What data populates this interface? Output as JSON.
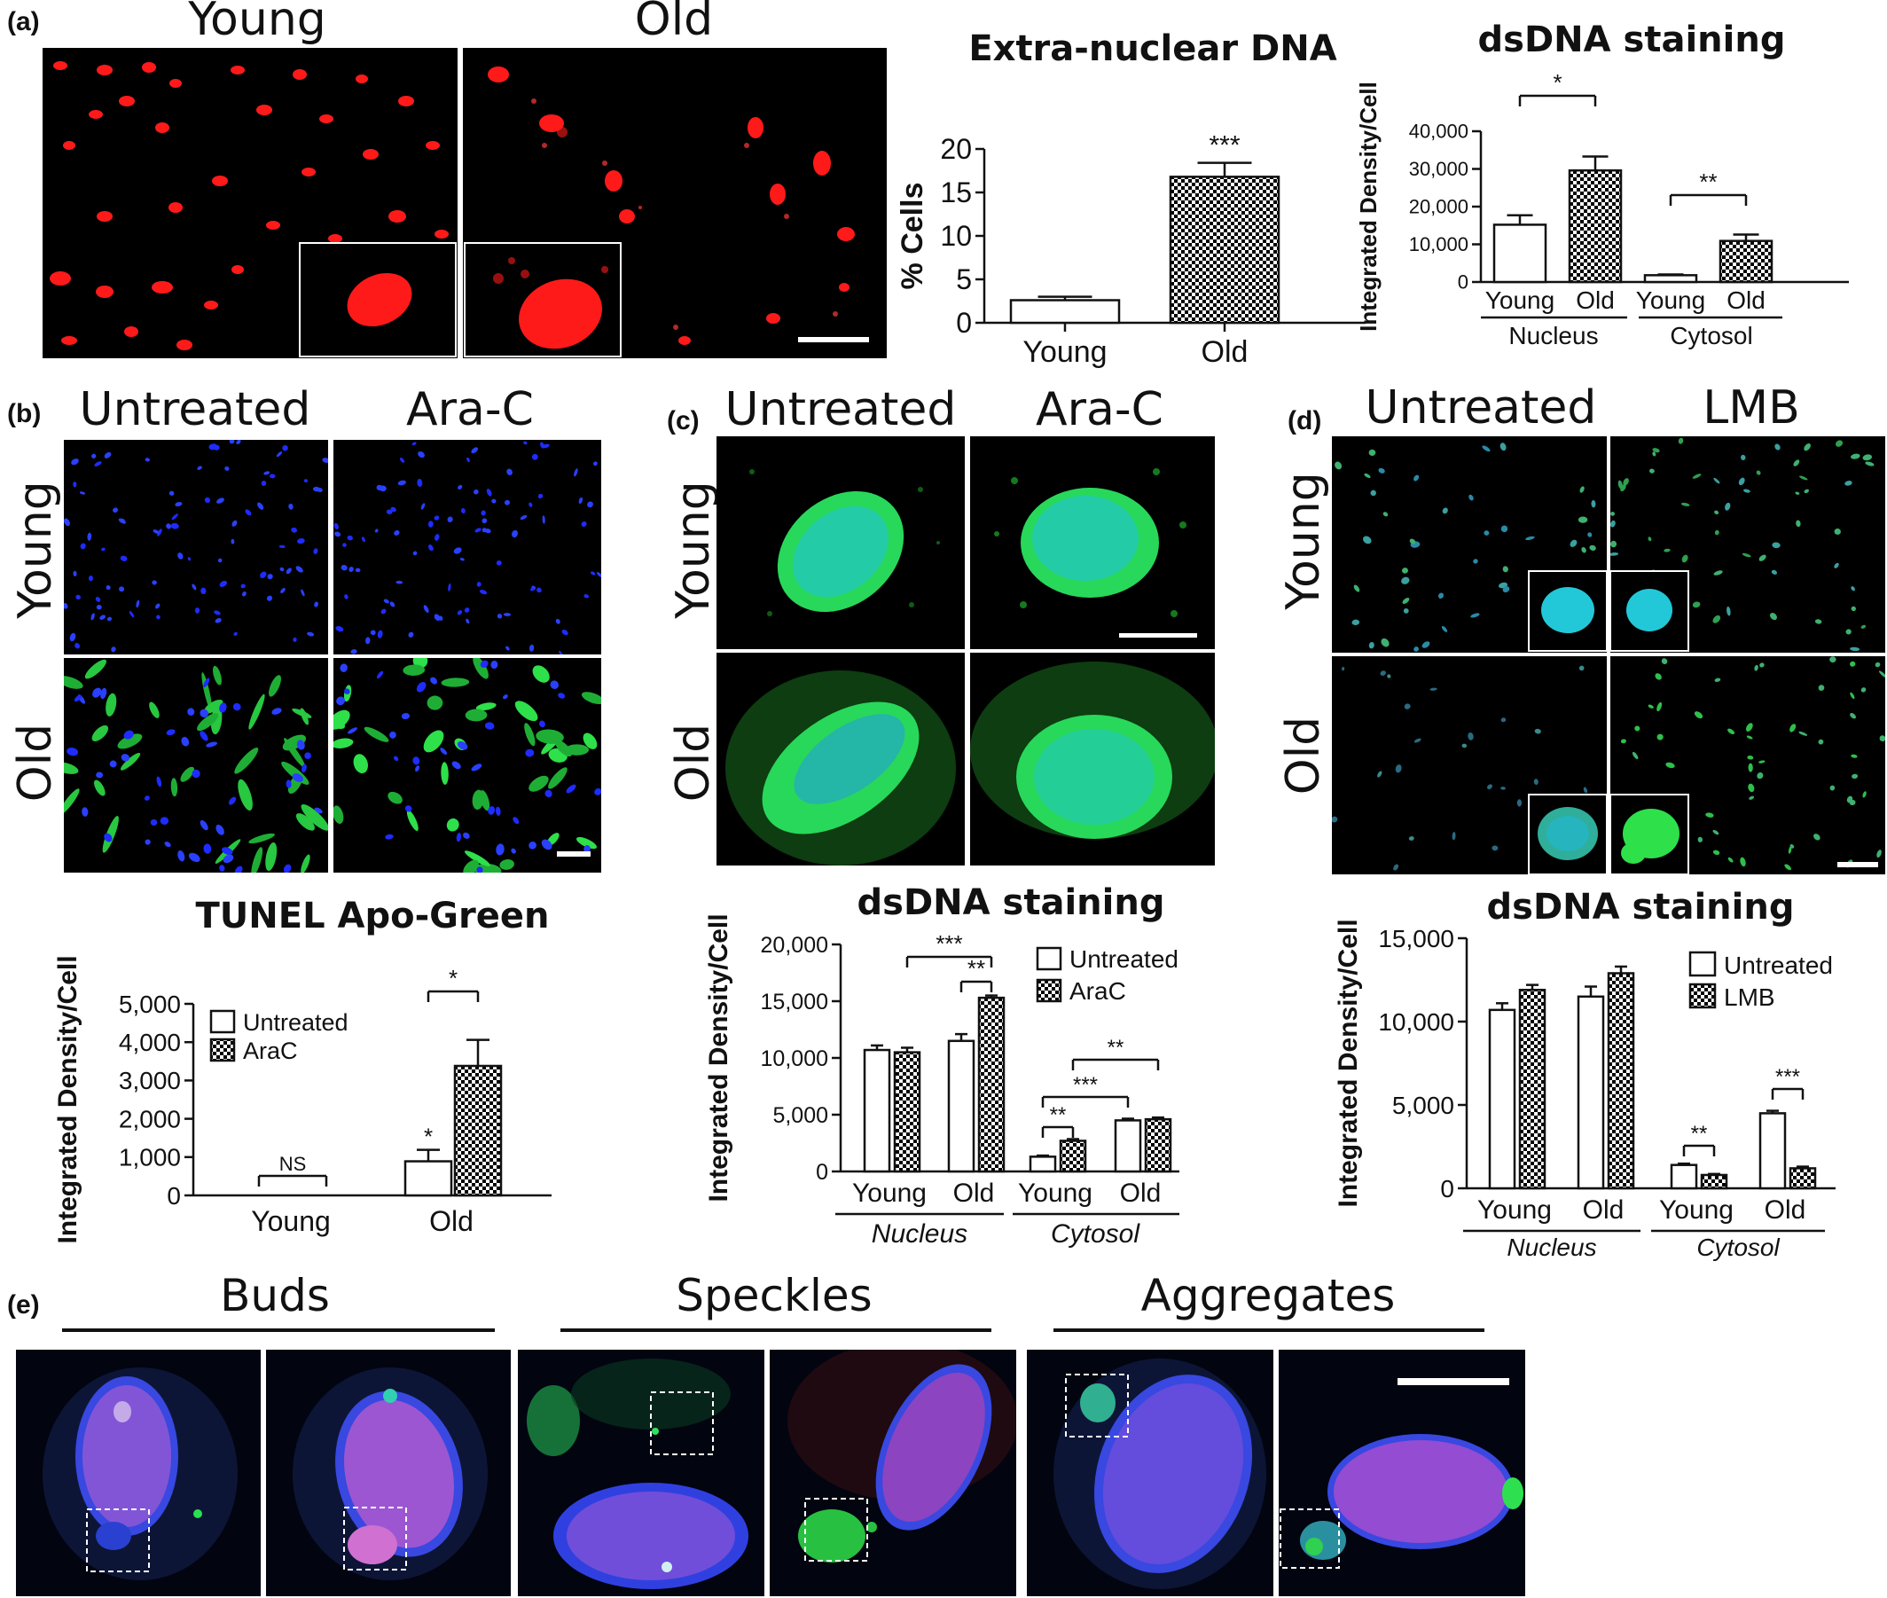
{
  "panel_labels": [
    "(a)",
    "(b)",
    "(c)",
    "(d)",
    "(e)"
  ],
  "panel_a": {
    "columns": [
      "Young",
      "Old"
    ]
  },
  "panel_b": {
    "columns": [
      "Untreated",
      "Ara-C"
    ],
    "rows": [
      "Young",
      "Old"
    ]
  },
  "panel_c": {
    "columns": [
      "Untreated",
      "Ara-C"
    ],
    "rows": [
      "Young",
      "Old"
    ]
  },
  "panel_d": {
    "columns": [
      "Untreated",
      "LMB"
    ],
    "rows": [
      "Young",
      "Old"
    ]
  },
  "panel_e": {
    "sections": [
      "Buds",
      "Speckles",
      "Aggregates"
    ]
  },
  "colors": {
    "red": "#ff1a1a",
    "green": "#22dd33",
    "blue": "#2a3bff",
    "cyan": "#22c8d8",
    "magenta": "#d050c8",
    "black": "#000000"
  },
  "chart_data": [
    {
      "id": "extra_nuclear_dna",
      "type": "bar",
      "title": "Extra-nuclear DNA",
      "ylabel": "% Cells",
      "categories": [
        "Young",
        "Old"
      ],
      "values": [
        2.6,
        16.8
      ],
      "errors": [
        0.4,
        1.6
      ],
      "ylim": [
        0,
        20
      ],
      "yticks": [
        "0",
        "5",
        "10",
        "15",
        "20"
      ],
      "patterns": [
        "white",
        "checker"
      ],
      "annotations": [
        {
          "text": "***",
          "over": "Old"
        }
      ]
    },
    {
      "id": "dsdna_a",
      "type": "bar",
      "title": "dsDNA staining",
      "ylabel": "Integrated Density/Cell",
      "categories": [
        "Young",
        "Old",
        "Young",
        "Old"
      ],
      "groups": [
        "Nucleus",
        "Cytosol"
      ],
      "values": [
        15200,
        29600,
        1800,
        10900
      ],
      "errors": [
        2500,
        3700,
        200,
        1700
      ],
      "ylim": [
        0,
        40000
      ],
      "yticks": [
        "0",
        "10,000",
        "20,000",
        "30,000",
        "40,000"
      ],
      "patterns": [
        "white",
        "checker",
        "white",
        "checker"
      ],
      "annotations": [
        {
          "text": "*",
          "between": [
            0,
            1
          ]
        },
        {
          "text": "**",
          "between": [
            2,
            3
          ]
        }
      ]
    },
    {
      "id": "tunel",
      "type": "bar",
      "title": "TUNEL Apo-Green",
      "ylabel": "Integrated Density/Cell",
      "categories": [
        "Young",
        "Old"
      ],
      "series": [
        {
          "name": "Untreated",
          "values": [
            0,
            890
          ],
          "errors": [
            0,
            300
          ]
        },
        {
          "name": "AraC",
          "values": [
            0,
            3380
          ],
          "errors": [
            0,
            680
          ]
        }
      ],
      "ylim": [
        0,
        5000
      ],
      "yticks": [
        "0",
        "1,000",
        "2,000",
        "3,000",
        "4,000",
        "5,000"
      ],
      "annotations": [
        {
          "text": "NS",
          "over": "Young"
        },
        {
          "text": "*",
          "over": "Old Untreated"
        },
        {
          "text": "*",
          "over": "Old pair"
        }
      ]
    },
    {
      "id": "dsdna_c",
      "type": "bar",
      "title": "dsDNA staining",
      "ylabel": "Integrated Density/Cell",
      "categories": [
        "Young",
        "Old",
        "Young",
        "Old"
      ],
      "groups": [
        "Nucleus",
        "Cytosol"
      ],
      "series": [
        {
          "name": "Untreated",
          "values": [
            10700,
            11500,
            1300,
            4500
          ],
          "errors": [
            400,
            600,
            100,
            150
          ]
        },
        {
          "name": "AraC",
          "values": [
            10500,
            15300,
            2700,
            4600
          ],
          "errors": [
            400,
            200,
            150,
            150
          ]
        }
      ],
      "ylim": [
        0,
        20000
      ],
      "yticks": [
        "0",
        "5,000",
        "10,000",
        "15,000",
        "20,000"
      ],
      "annotations": [
        {
          "text": "***"
        },
        {
          "text": "**"
        },
        {
          "text": "**"
        },
        {
          "text": "***"
        },
        {
          "text": "**"
        }
      ]
    },
    {
      "id": "dsdna_d",
      "type": "bar",
      "title": "dsDNA staining",
      "ylabel": "Integrated Density/Cell",
      "categories": [
        "Young",
        "Old",
        "Young",
        "Old"
      ],
      "groups": [
        "Nucleus",
        "Cytosol"
      ],
      "series": [
        {
          "name": "Untreated",
          "values": [
            10700,
            11500,
            1400,
            4500
          ],
          "errors": [
            400,
            600,
            80,
            150
          ]
        },
        {
          "name": "LMB",
          "values": [
            11900,
            12900,
            800,
            1200
          ],
          "errors": [
            300,
            400,
            60,
            100
          ]
        }
      ],
      "ylim": [
        0,
        15000
      ],
      "yticks": [
        "0",
        "5,000",
        "10,000",
        "15,000"
      ],
      "annotations": [
        {
          "text": "**"
        },
        {
          "text": "***"
        }
      ]
    }
  ]
}
